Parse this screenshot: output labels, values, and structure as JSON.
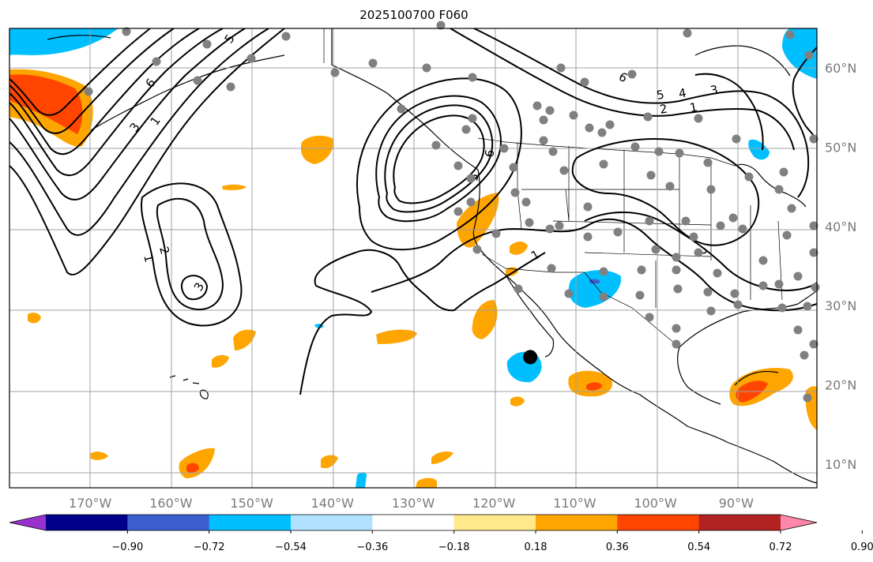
{
  "title": "2025100700 F060",
  "map": {
    "lon_range": [
      -180,
      -80
    ],
    "lat_range": [
      7,
      65
    ],
    "lon_ticks": [
      {
        "value": -170,
        "label": "170°W"
      },
      {
        "value": -160,
        "label": "160°W"
      },
      {
        "value": -150,
        "label": "150°W"
      },
      {
        "value": -140,
        "label": "140°W"
      },
      {
        "value": -130,
        "label": "130°W"
      },
      {
        "value": -120,
        "label": "120°W"
      },
      {
        "value": -110,
        "label": "110°W"
      },
      {
        "value": -100,
        "label": "100°W"
      },
      {
        "value": -90,
        "label": "90°W"
      }
    ],
    "lat_ticks": [
      {
        "value": 60,
        "label": "60°N"
      },
      {
        "value": 50,
        "label": "50°N"
      },
      {
        "value": 40,
        "label": "40°N"
      },
      {
        "value": 30,
        "label": "30°N"
      },
      {
        "value": 20,
        "label": "20°N"
      },
      {
        "value": 10,
        "label": "10°N"
      }
    ],
    "gridlines": true,
    "contour_labels": [
      "1",
      "2",
      "3",
      "4",
      "5",
      "6"
    ],
    "target_marker": {
      "lon": -115.5,
      "lat": 23.5
    }
  },
  "colorbar": {
    "colors": [
      "#9932cc",
      "#00008b",
      "#3a5fcd",
      "#00bfff",
      "#b0e2ff",
      "#ffffff",
      "#ffe98a",
      "#ffa500",
      "#ff4500",
      "#b22222",
      "#ff88aa"
    ],
    "ticks": [
      "−0.90",
      "−0.72",
      "−0.54",
      "−0.36",
      "−0.18",
      "0.18",
      "0.36",
      "0.54",
      "0.72",
      "0.90"
    ],
    "extend": "both"
  },
  "colors": {
    "contour": "#000000",
    "station": "#808080",
    "grid": "#a0a0a0"
  }
}
